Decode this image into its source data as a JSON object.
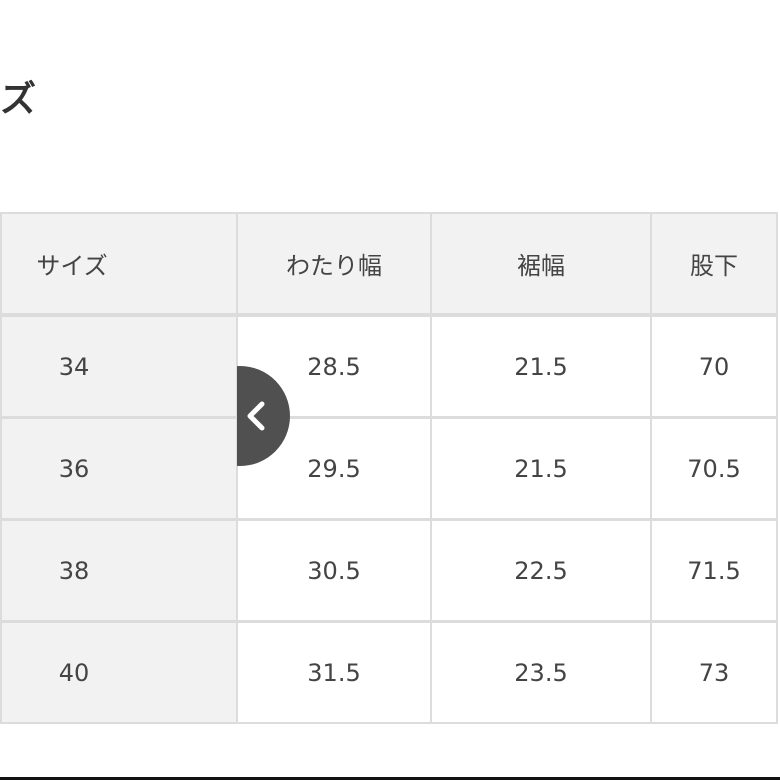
{
  "title": "ズ",
  "table": {
    "headers": [
      "サイズ",
      "わたり幅",
      "裾幅",
      "股下"
    ],
    "rows": [
      [
        "34",
        "28.5",
        "21.5",
        "70"
      ],
      [
        "36",
        "29.5",
        "21.5",
        "70.5"
      ],
      [
        "38",
        "30.5",
        "22.5",
        "71.5"
      ],
      [
        "40",
        "31.5",
        "23.5",
        "73"
      ]
    ]
  },
  "nav": {
    "icon": "chevron-left-icon"
  },
  "colors": {
    "header_bg": "#f2f2f2",
    "border": "#dcdcdc",
    "nav_button": "#505050"
  }
}
